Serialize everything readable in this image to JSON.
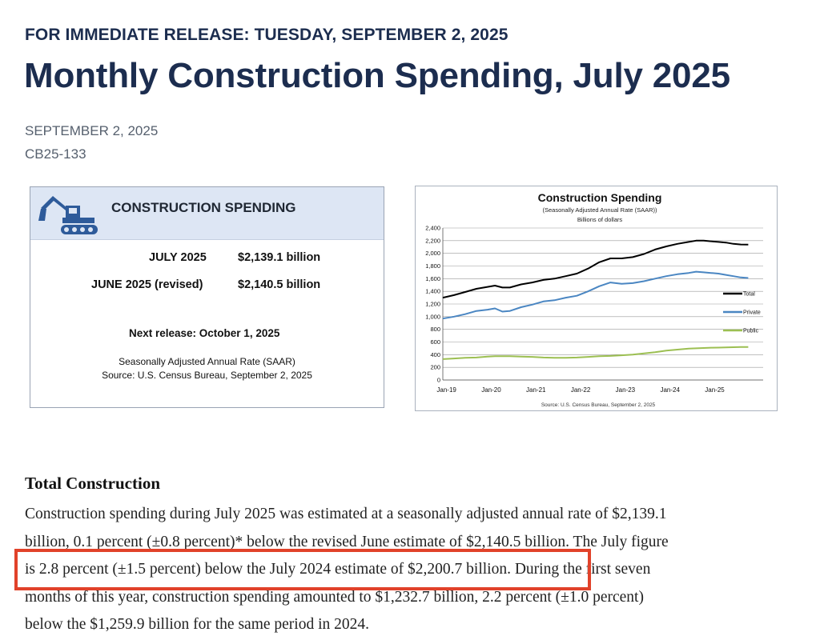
{
  "header": {
    "kicker": "FOR IMMEDIATE RELEASE: TUESDAY, SEPTEMBER 2, 2025",
    "title": "Monthly Construction Spending, July 2025",
    "date": "SEPTEMBER 2, 2025",
    "release_number": "CB25-133"
  },
  "card": {
    "icon": "excavator-icon",
    "title": "CONSTRUCTION SPENDING",
    "rows": [
      {
        "label": "JULY 2025",
        "value": "$2,139.1 billion"
      },
      {
        "label": "JUNE 2025 (revised)",
        "value": "$2,140.5 billion"
      }
    ],
    "next_release": "Next release: October 1, 2025",
    "note1": "Seasonally Adjusted Annual Rate (SAAR)",
    "note2": "Source: U.S. Census Bureau, September 2, 2025",
    "colors": {
      "header_bg": "#dde6f4",
      "icon": "#2e5b9a"
    }
  },
  "chart_data": {
    "type": "line",
    "title": "Construction Spending",
    "subtitle": "(Seasonally Adjusted Annual Rate (SAAR))",
    "ylabel": "Billions of dollars",
    "source": "Source: U.S. Census Bureau, September 2, 2025",
    "ylim": [
      0,
      2400
    ],
    "yticks": [
      "0",
      "200",
      "400",
      "600",
      "800",
      "1,000",
      "1,200",
      "1,400",
      "1,600",
      "1,800",
      "2,000",
      "2,200",
      "2,400"
    ],
    "xticks": [
      "Jan-19",
      "Jan-20",
      "Jan-21",
      "Jan-22",
      "Jan-23",
      "Jan-24",
      "Jan-25"
    ],
    "x_unit": "months since Jan-19",
    "grid": true,
    "legend_position": "right",
    "series": [
      {
        "name": "Total",
        "color": "#000000",
        "points": [
          [
            0,
            1300
          ],
          [
            3,
            1340
          ],
          [
            6,
            1390
          ],
          [
            9,
            1440
          ],
          [
            12,
            1470
          ],
          [
            14,
            1490
          ],
          [
            16,
            1460
          ],
          [
            18,
            1460
          ],
          [
            21,
            1510
          ],
          [
            24,
            1540
          ],
          [
            27,
            1580
          ],
          [
            30,
            1600
          ],
          [
            33,
            1640
          ],
          [
            36,
            1680
          ],
          [
            39,
            1760
          ],
          [
            42,
            1860
          ],
          [
            45,
            1920
          ],
          [
            48,
            1920
          ],
          [
            51,
            1940
          ],
          [
            54,
            1990
          ],
          [
            57,
            2060
          ],
          [
            60,
            2110
          ],
          [
            63,
            2150
          ],
          [
            66,
            2180
          ],
          [
            68,
            2200
          ],
          [
            70,
            2200
          ],
          [
            72,
            2190
          ],
          [
            74,
            2180
          ],
          [
            76,
            2170
          ],
          [
            78,
            2150
          ],
          [
            80,
            2140
          ],
          [
            82,
            2139
          ]
        ]
      },
      {
        "name": "Private",
        "color": "#4a86c2",
        "points": [
          [
            0,
            970
          ],
          [
            3,
            1000
          ],
          [
            6,
            1040
          ],
          [
            9,
            1090
          ],
          [
            12,
            1110
          ],
          [
            14,
            1130
          ],
          [
            16,
            1080
          ],
          [
            18,
            1090
          ],
          [
            21,
            1150
          ],
          [
            24,
            1190
          ],
          [
            27,
            1240
          ],
          [
            30,
            1260
          ],
          [
            33,
            1300
          ],
          [
            36,
            1330
          ],
          [
            39,
            1400
          ],
          [
            42,
            1480
          ],
          [
            45,
            1540
          ],
          [
            48,
            1520
          ],
          [
            51,
            1530
          ],
          [
            54,
            1560
          ],
          [
            57,
            1600
          ],
          [
            60,
            1640
          ],
          [
            63,
            1670
          ],
          [
            66,
            1690
          ],
          [
            68,
            1710
          ],
          [
            70,
            1700
          ],
          [
            72,
            1690
          ],
          [
            74,
            1680
          ],
          [
            76,
            1660
          ],
          [
            78,
            1640
          ],
          [
            80,
            1620
          ],
          [
            82,
            1610
          ]
        ]
      },
      {
        "name": "Public",
        "color": "#9cbf52",
        "points": [
          [
            0,
            330
          ],
          [
            3,
            340
          ],
          [
            6,
            350
          ],
          [
            9,
            355
          ],
          [
            12,
            370
          ],
          [
            14,
            375
          ],
          [
            16,
            375
          ],
          [
            18,
            375
          ],
          [
            21,
            370
          ],
          [
            24,
            365
          ],
          [
            27,
            355
          ],
          [
            30,
            350
          ],
          [
            33,
            350
          ],
          [
            36,
            355
          ],
          [
            39,
            365
          ],
          [
            42,
            375
          ],
          [
            45,
            380
          ],
          [
            48,
            390
          ],
          [
            51,
            400
          ],
          [
            54,
            420
          ],
          [
            57,
            440
          ],
          [
            60,
            465
          ],
          [
            63,
            480
          ],
          [
            66,
            495
          ],
          [
            68,
            500
          ],
          [
            70,
            505
          ],
          [
            72,
            510
          ],
          [
            74,
            512
          ],
          [
            76,
            515
          ],
          [
            78,
            518
          ],
          [
            80,
            520
          ],
          [
            82,
            522
          ]
        ]
      }
    ]
  },
  "article": {
    "heading": "Total Construction",
    "lines": [
      "Construction spending during July 2025 was estimated at a seasonally adjusted annual rate of $2,139.1",
      "billion, 0.1 percent (±0.8 percent)* below the revised June estimate of $2,140.5 billion. The July figure",
      "is 2.8 percent (±1.5 percent) below the July 2024 estimate of $2,200.7 billion. During the first seven",
      "months of this year, construction spending amounted to $1,232.7 billion, 2.2 percent (±1.0 percent)",
      "below the $1,259.9 billion for the same period in 2024."
    ],
    "highlight_color": "#e1422a"
  }
}
